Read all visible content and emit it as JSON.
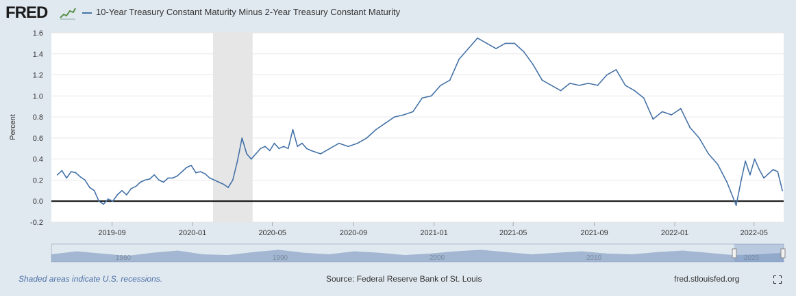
{
  "header": {
    "logo_text": "FRED",
    "logo_icon": "chart-line-icon",
    "series_title": "10-Year Treasury Constant Maturity Minus 2-Year Treasury Constant Maturity"
  },
  "footer": {
    "note": "Shaded areas indicate U.S. recessions.",
    "source": "Source: Federal Reserve Bank of St. Louis",
    "site": "fred.stlouisfed.org",
    "fullscreen_icon": "fullscreen-icon"
  },
  "navigator": {
    "year_labels": [
      "1980",
      "1990",
      "2000",
      "2010",
      "2020"
    ]
  },
  "colors": {
    "series": "#4572a7",
    "recession": "#e6e6e6",
    "background": "#e1e9f0",
    "zero_line": "#000000"
  },
  "chart_data": {
    "type": "line",
    "title": "10-Year Treasury Constant Maturity Minus 2-Year Treasury Constant Maturity",
    "xlabel": "",
    "ylabel": "Percent",
    "ylim": [
      -0.2,
      1.6
    ],
    "yticks": [
      "-0.2",
      "0.0",
      "0.2",
      "0.4",
      "0.6",
      "0.8",
      "1.0",
      "1.2",
      "1.4",
      "1.6"
    ],
    "xticks": [
      "2019-09",
      "2020-01",
      "2020-05",
      "2020-09",
      "2021-01",
      "2021-05",
      "2021-09",
      "2022-01",
      "2022-05"
    ],
    "grid": true,
    "recession": [
      "2020-02",
      "2020-04"
    ],
    "series": [
      {
        "name": "10-Year Treasury Constant Maturity Minus 2-Year Treasury Constant Maturity",
        "x": [
          "2019-06-10",
          "2019-06-17",
          "2019-06-24",
          "2019-07-01",
          "2019-07-08",
          "2019-07-15",
          "2019-07-22",
          "2019-07-29",
          "2019-08-05",
          "2019-08-12",
          "2019-08-19",
          "2019-08-26",
          "2019-09-02",
          "2019-09-09",
          "2019-09-16",
          "2019-09-23",
          "2019-09-30",
          "2019-10-07",
          "2019-10-14",
          "2019-10-21",
          "2019-10-28",
          "2019-11-04",
          "2019-11-11",
          "2019-11-18",
          "2019-11-25",
          "2019-12-02",
          "2019-12-09",
          "2019-12-16",
          "2019-12-23",
          "2019-12-30",
          "2020-01-06",
          "2020-01-13",
          "2020-01-20",
          "2020-01-27",
          "2020-02-03",
          "2020-02-10",
          "2020-02-17",
          "2020-02-24",
          "2020-03-02",
          "2020-03-09",
          "2020-03-16",
          "2020-03-23",
          "2020-03-30",
          "2020-04-06",
          "2020-04-13",
          "2020-04-20",
          "2020-04-27",
          "2020-05-04",
          "2020-05-11",
          "2020-05-18",
          "2020-05-25",
          "2020-06-01",
          "2020-06-08",
          "2020-06-15",
          "2020-06-22",
          "2020-06-29",
          "2020-07-13",
          "2020-07-27",
          "2020-08-10",
          "2020-08-24",
          "2020-09-07",
          "2020-09-21",
          "2020-10-05",
          "2020-10-19",
          "2020-11-02",
          "2020-11-16",
          "2020-11-30",
          "2020-12-14",
          "2020-12-28",
          "2021-01-11",
          "2021-01-25",
          "2021-02-08",
          "2021-02-22",
          "2021-03-08",
          "2021-03-22",
          "2021-04-05",
          "2021-04-19",
          "2021-05-03",
          "2021-05-17",
          "2021-05-31",
          "2021-06-14",
          "2021-06-28",
          "2021-07-12",
          "2021-07-26",
          "2021-08-09",
          "2021-08-23",
          "2021-09-06",
          "2021-09-20",
          "2021-10-04",
          "2021-10-18",
          "2021-11-01",
          "2021-11-15",
          "2021-11-29",
          "2021-12-13",
          "2021-12-27",
          "2022-01-10",
          "2022-01-24",
          "2022-02-07",
          "2022-02-21",
          "2022-03-07",
          "2022-03-21",
          "2022-04-04",
          "2022-04-11",
          "2022-04-18",
          "2022-04-25",
          "2022-05-02",
          "2022-05-09",
          "2022-05-16",
          "2022-05-23",
          "2022-05-30",
          "2022-06-06",
          "2022-06-13"
        ],
        "values": [
          0.25,
          0.29,
          0.22,
          0.28,
          0.27,
          0.23,
          0.2,
          0.13,
          0.1,
          0.0,
          -0.03,
          0.02,
          0.0,
          0.06,
          0.1,
          0.06,
          0.12,
          0.14,
          0.18,
          0.2,
          0.21,
          0.25,
          0.2,
          0.18,
          0.22,
          0.22,
          0.24,
          0.28,
          0.32,
          0.34,
          0.27,
          0.28,
          0.26,
          0.22,
          0.2,
          0.18,
          0.16,
          0.13,
          0.2,
          0.38,
          0.6,
          0.45,
          0.4,
          0.45,
          0.5,
          0.52,
          0.48,
          0.55,
          0.5,
          0.52,
          0.5,
          0.68,
          0.52,
          0.55,
          0.5,
          0.48,
          0.45,
          0.5,
          0.55,
          0.52,
          0.55,
          0.6,
          0.68,
          0.74,
          0.8,
          0.82,
          0.85,
          0.98,
          1.0,
          1.1,
          1.15,
          1.35,
          1.45,
          1.55,
          1.5,
          1.45,
          1.5,
          1.5,
          1.42,
          1.3,
          1.15,
          1.1,
          1.05,
          1.12,
          1.1,
          1.12,
          1.1,
          1.2,
          1.25,
          1.1,
          1.05,
          0.98,
          0.78,
          0.85,
          0.82,
          0.88,
          0.7,
          0.6,
          0.45,
          0.35,
          0.18,
          -0.04,
          0.18,
          0.38,
          0.25,
          0.4,
          0.3,
          0.22,
          0.26,
          0.3,
          0.28,
          0.1
        ]
      }
    ]
  }
}
